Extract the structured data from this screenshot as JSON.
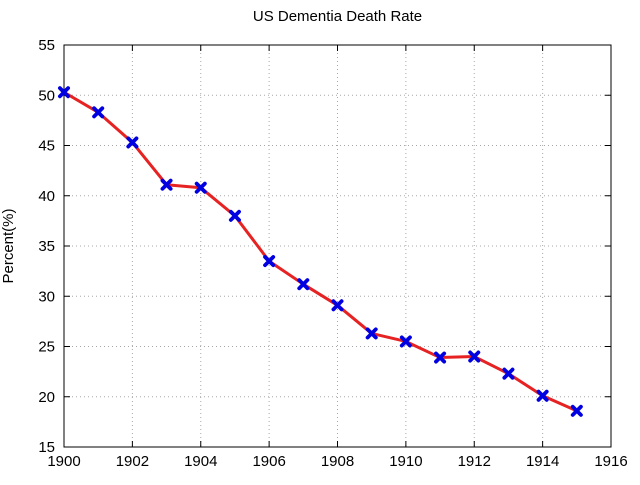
{
  "figure": {
    "background": "#ffffff"
  },
  "chart_data": {
    "type": "line",
    "title": "US Dementia Death Rate",
    "xlabel": "",
    "ylabel": "Percent(%)",
    "x": [
      1900,
      1901,
      1902,
      1903,
      1904,
      1905,
      1906,
      1907,
      1908,
      1909,
      1910,
      1911,
      1912,
      1913,
      1914,
      1915
    ],
    "series": [
      {
        "name": "US dementia death rate",
        "values": [
          50.3,
          48.3,
          45.3,
          41.1,
          40.8,
          38.0,
          33.5,
          31.2,
          29.1,
          26.3,
          25.5,
          23.9,
          24.0,
          22.3,
          20.1,
          18.6
        ],
        "line_color": "#e62222",
        "line_width": 3,
        "marker": "x",
        "marker_color": "#0000e0"
      }
    ],
    "xlim": [
      1900,
      1916
    ],
    "ylim": [
      15,
      55
    ],
    "xticks": [
      1900,
      1902,
      1904,
      1906,
      1908,
      1910,
      1912,
      1914,
      1916
    ],
    "yticks": [
      15,
      20,
      25,
      30,
      35,
      40,
      45,
      50,
      55
    ],
    "grid": true,
    "grid_style": "dotted",
    "grid_color": "#a8a8a8",
    "axis_color": "#000000",
    "legend": "none"
  }
}
